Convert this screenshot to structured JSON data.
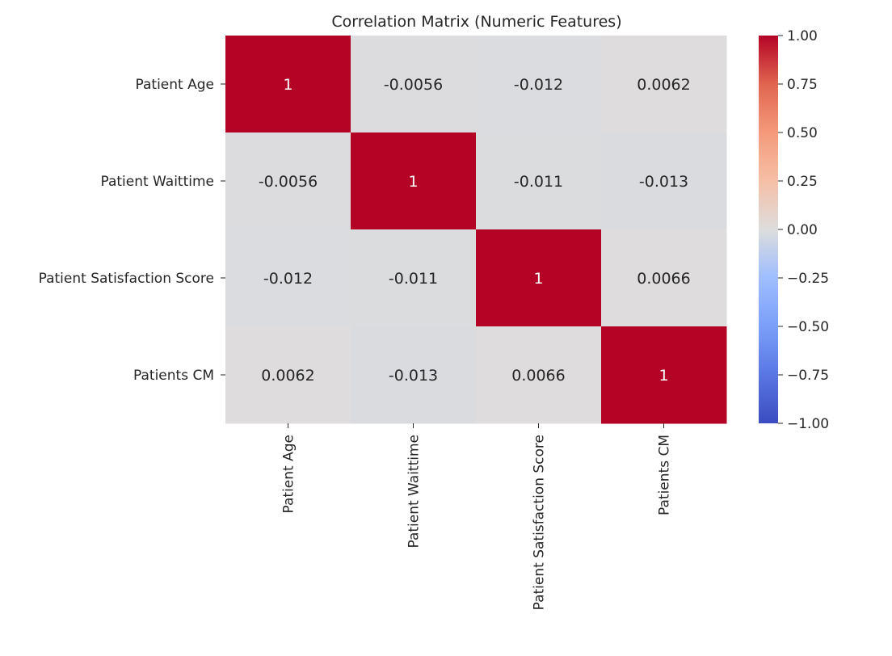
{
  "chart_data": {
    "type": "heatmap",
    "title": "Correlation Matrix (Numeric Features)",
    "row_labels": [
      "Patient Age",
      "Patient Waittime",
      "Patient Satisfaction Score",
      "Patients CM"
    ],
    "col_labels": [
      "Patient Age",
      "Patient Waittime",
      "Patient Satisfaction Score",
      "Patients CM"
    ],
    "values": [
      [
        1,
        -0.0056,
        -0.012,
        0.0062
      ],
      [
        -0.0056,
        1,
        -0.011,
        -0.013
      ],
      [
        -0.012,
        -0.011,
        1,
        0.0066
      ],
      [
        0.0062,
        -0.013,
        0.0066,
        1
      ]
    ],
    "annotations": [
      [
        "1",
        "-0.0056",
        "-0.012",
        "0.0062"
      ],
      [
        "-0.0056",
        "1",
        "-0.011",
        "-0.013"
      ],
      [
        "-0.012",
        "-0.011",
        "1",
        "0.0066"
      ],
      [
        "0.0062",
        "-0.013",
        "0.0066",
        "1"
      ]
    ],
    "colormap": "coolwarm",
    "vmin": -1,
    "vmax": 1,
    "colorbar_ticks": [
      1.0,
      0.75,
      0.5,
      0.25,
      0.0,
      -0.25,
      -0.5,
      -0.75,
      -1.0
    ],
    "colorbar_tick_labels": [
      "1.00",
      "0.75",
      "0.50",
      "0.25",
      "0.00",
      "−0.25",
      "−0.50",
      "−0.75",
      "−1.00"
    ],
    "legend_placement": "right"
  }
}
